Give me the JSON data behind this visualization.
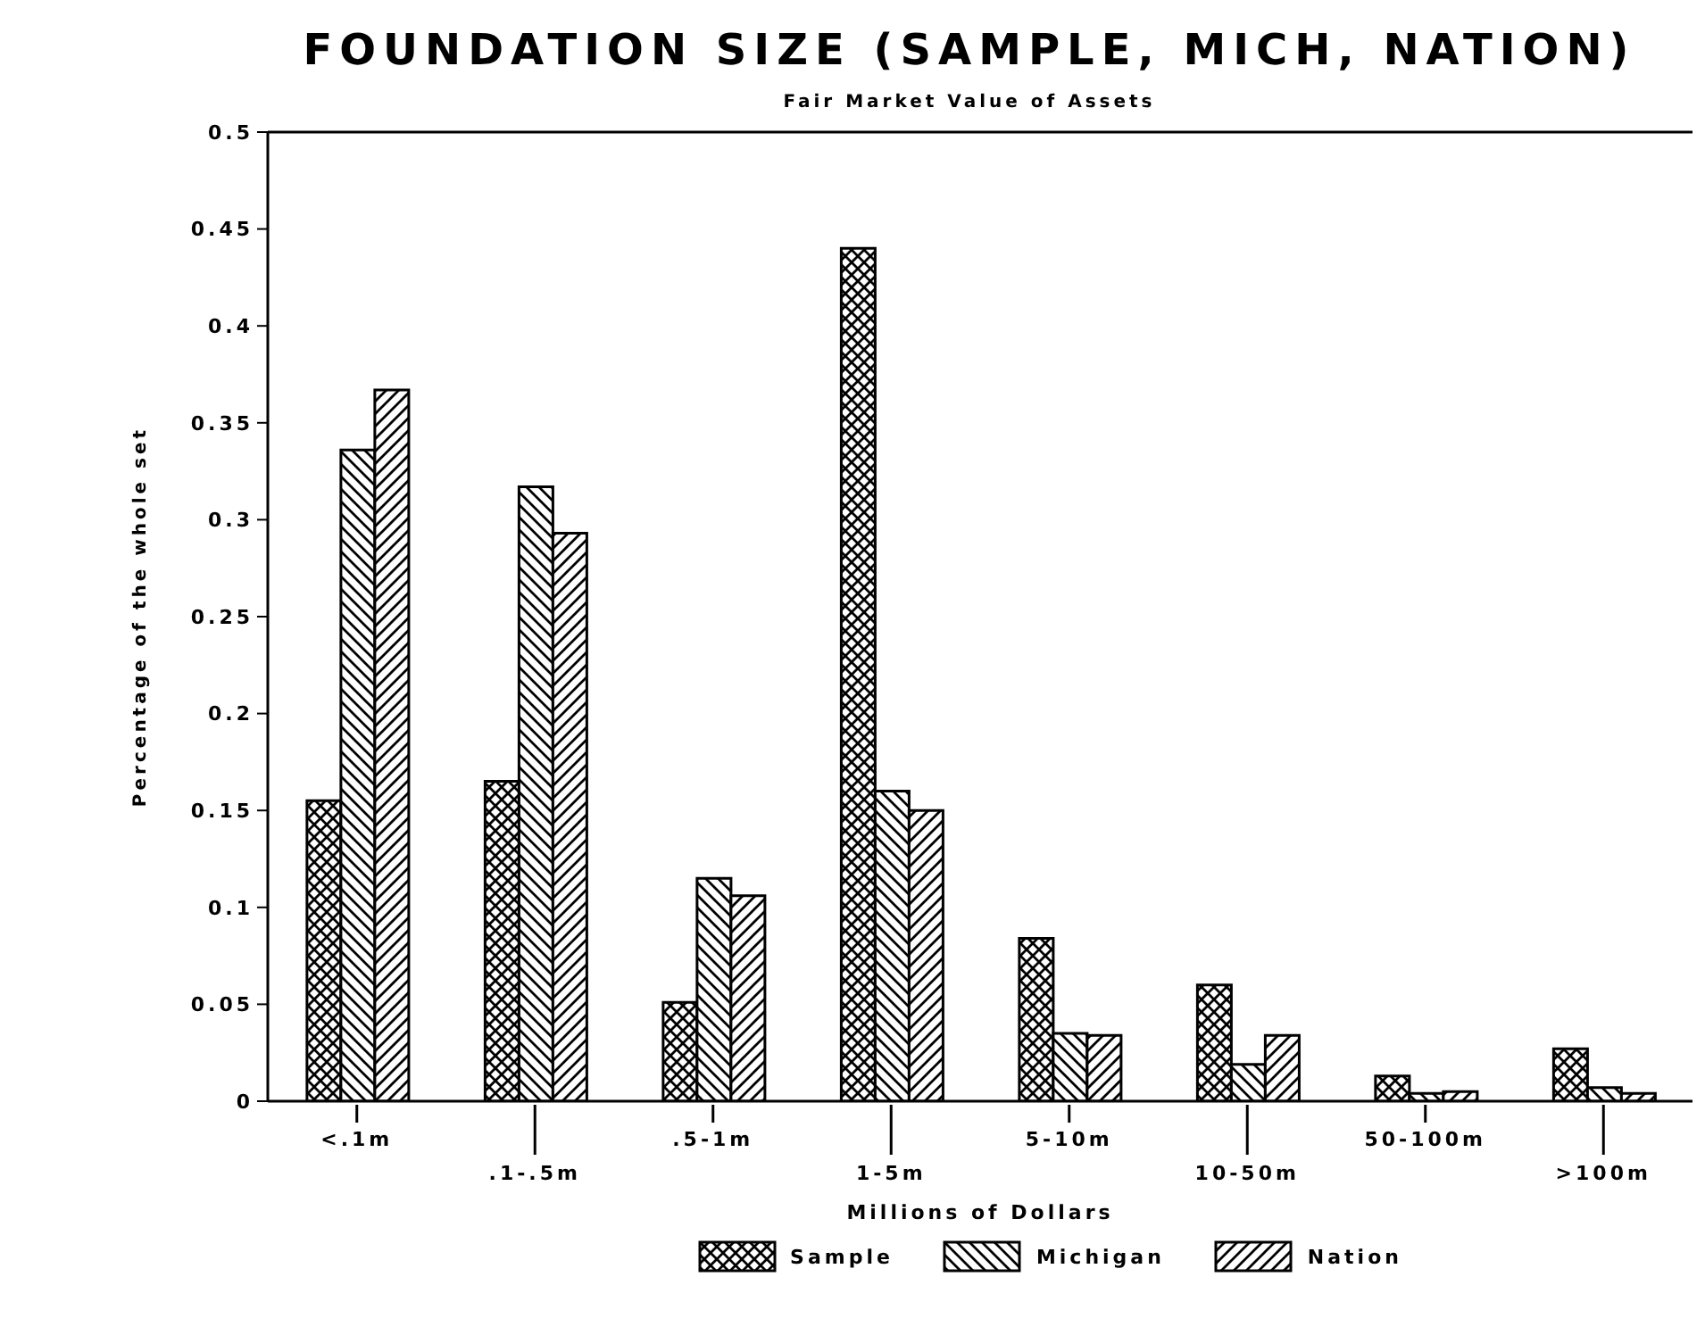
{
  "chart_data": {
    "type": "bar",
    "title": "FOUNDATION SIZE (SAMPLE, MICH, NATION)",
    "subtitle": "Fair Market Value of Assets",
    "xlabel": "Millions of Dollars",
    "ylabel": "Percentage of the whole set",
    "categories": [
      "<.1m",
      ".1-.5m",
      ".5-1m",
      "1-5m",
      "5-10m",
      "10-50m",
      "50-100m",
      ">100m"
    ],
    "series": [
      {
        "name": "Sample",
        "color": "#000000",
        "values": [
          0.155,
          0.165,
          0.051,
          0.44,
          0.084,
          0.06,
          0.013,
          0.027
        ]
      },
      {
        "name": "Michigan",
        "color": "#000000",
        "values": [
          0.336,
          0.317,
          0.115,
          0.16,
          0.035,
          0.019,
          0.004,
          0.007
        ]
      },
      {
        "name": "Nation",
        "color": "#000000",
        "values": [
          0.367,
          0.293,
          0.106,
          0.15,
          0.034,
          0.034,
          0.005,
          0.004
        ]
      }
    ],
    "ylim": [
      0,
      0.5
    ],
    "yticks": [
      0,
      0.05,
      0.1,
      0.15,
      0.2,
      0.25,
      0.3,
      0.35,
      0.4,
      0.45,
      0.5
    ],
    "grid": false,
    "legend": "bottom"
  }
}
